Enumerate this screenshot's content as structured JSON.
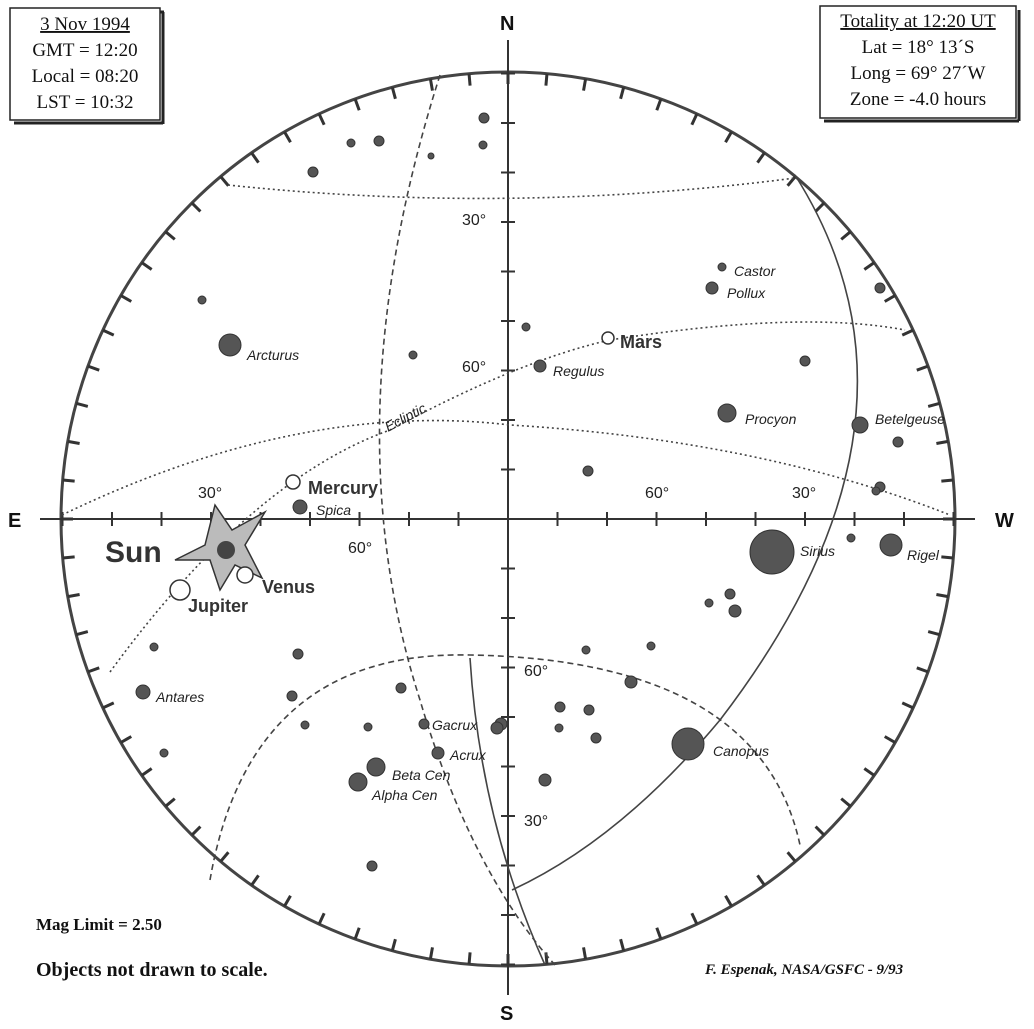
{
  "date_box": [
    "3 Nov 1994",
    "GMT = 12:20",
    "Local = 08:20",
    "LST = 10:32"
  ],
  "totality_box": [
    "Totality at 12:20 UT",
    "Lat =   18° 13´S",
    "Long =   69° 27´W",
    "Zone =   -4.0 hours"
  ],
  "compass": {
    "north": "N",
    "south": "S",
    "east": "E",
    "west": "W"
  },
  "scale_labels": [
    "30°",
    "60°",
    "30°",
    "60°",
    "60°",
    "30°",
    "60°",
    "30°"
  ],
  "stars": [
    "Arcturus",
    "Castor",
    "Pollux",
    "Regulus",
    "Procyon",
    "Betelgeuse",
    "Spica",
    "Sirius",
    "Rigel",
    "Antares",
    "Gacrux",
    "Acrux",
    "Beta Cen",
    "Alpha Cen",
    "Canopus"
  ],
  "bodies": [
    "Sun",
    "Mercury",
    "Venus",
    "Jupiter",
    "Mars"
  ],
  "ecliptic_label": "Ecliptic",
  "footer": {
    "mag_limit": "Mag Limit =  2.50",
    "note": "Objects not drawn to scale.",
    "credit": "F. Espenak, NASA/GSFC - 9/93"
  }
}
